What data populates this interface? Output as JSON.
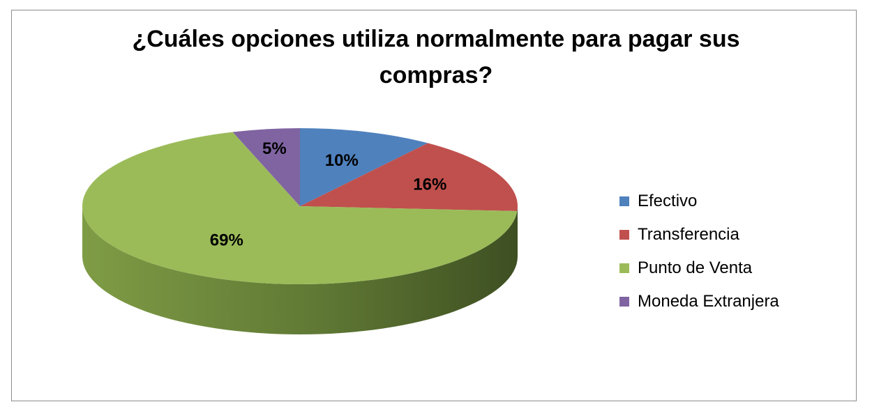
{
  "chart_data": {
    "type": "pie",
    "title_lines": [
      "¿Cuáles opciones utiliza normalmente para pagar sus",
      "compras?"
    ],
    "categories": [
      "Efectivo",
      "Transferencia",
      "Punto de Venta",
      "Moneda Extranjera"
    ],
    "values": [
      10,
      16,
      69,
      5
    ],
    "labels": [
      "10%",
      "16%",
      "69%",
      "5%"
    ],
    "unit": "%",
    "colors": [
      "#4f81bd",
      "#c0504d",
      "#9bbb59",
      "#8064a2"
    ],
    "style": "3d",
    "legend_position": "right"
  }
}
